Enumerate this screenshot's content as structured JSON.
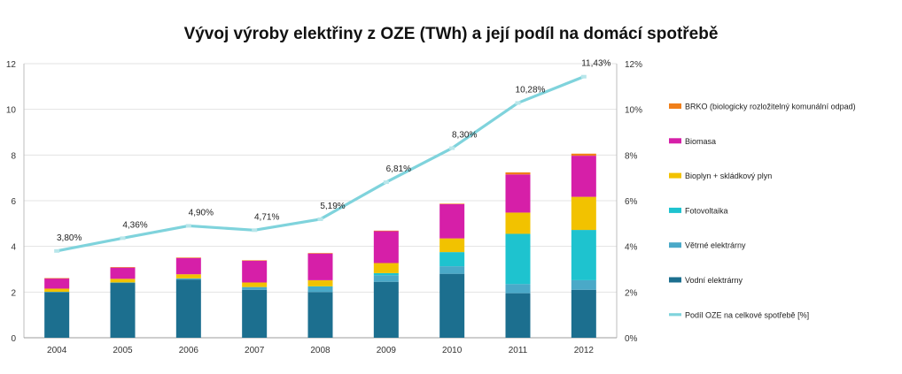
{
  "chart_data": {
    "type": "bar",
    "title": "Vývoj výroby elektřiny z OZE (TWh) a její podíl na domácí spotřebě",
    "categories": [
      "2004",
      "2005",
      "2006",
      "2007",
      "2008",
      "2009",
      "2010",
      "2011",
      "2012"
    ],
    "stacked": true,
    "ylim": [
      0,
      12
    ],
    "y_ticks": [
      "0",
      "2",
      "4",
      "6",
      "8",
      "10",
      "12"
    ],
    "y2lim": [
      0,
      12
    ],
    "y2_ticks": [
      "0%",
      "2%",
      "4%",
      "6%",
      "8%",
      "10%",
      "12%"
    ],
    "grid": true,
    "legend_position": "right",
    "series": [
      {
        "name": "Vodní elektrárny",
        "color": "#1c6f8f",
        "values": [
          2.0,
          2.4,
          2.55,
          2.1,
          2.0,
          2.45,
          2.8,
          1.95,
          2.1
        ]
      },
      {
        "name": "Větrné elektrárny",
        "color": "#4aa9c8",
        "values": [
          0.01,
          0.02,
          0.05,
          0.12,
          0.24,
          0.29,
          0.33,
          0.4,
          0.42
        ]
      },
      {
        "name": "Fotovoltaika",
        "color": "#1ec3cf",
        "values": [
          0.0,
          0.0,
          0.0,
          0.0,
          0.01,
          0.09,
          0.62,
          2.2,
          2.2
        ]
      },
      {
        "name": "Bioplyn + skládkový plyn",
        "color": "#f2c200",
        "values": [
          0.14,
          0.16,
          0.18,
          0.2,
          0.27,
          0.44,
          0.6,
          0.93,
          1.45
        ]
      },
      {
        "name": "Biomasa",
        "color": "#d61fa8",
        "values": [
          0.45,
          0.5,
          0.72,
          0.96,
          1.17,
          1.4,
          1.5,
          1.67,
          1.8
        ]
      },
      {
        "name": "BRKO (biologicky rozložitelný komunální odpad)",
        "color": "#f07f1a",
        "values": [
          0.01,
          0.01,
          0.01,
          0.01,
          0.02,
          0.02,
          0.02,
          0.09,
          0.09
        ]
      }
    ],
    "line_series": {
      "name": "Podíl OZE na celkové spotřebě [%]",
      "color": "#7fd3dc",
      "axis": "right",
      "values": [
        3.8,
        4.36,
        4.9,
        4.71,
        5.19,
        6.81,
        8.3,
        10.28,
        11.43
      ],
      "labels": [
        "3,80%",
        "4,36%",
        "4,90%",
        "4,71%",
        "5,19%",
        "6,81%",
        "8,30%",
        "10,28%",
        "11,43%"
      ]
    },
    "legend_order": [
      "BRKO (biologicky rozložitelný komunální odpad)",
      "Biomasa",
      "Bioplyn + skládkový plyn",
      "Fotovoltaika",
      "Větrné elektrárny",
      "Vodní elektrárny",
      "Podíl OZE na celkové spotřebě [%]"
    ]
  }
}
